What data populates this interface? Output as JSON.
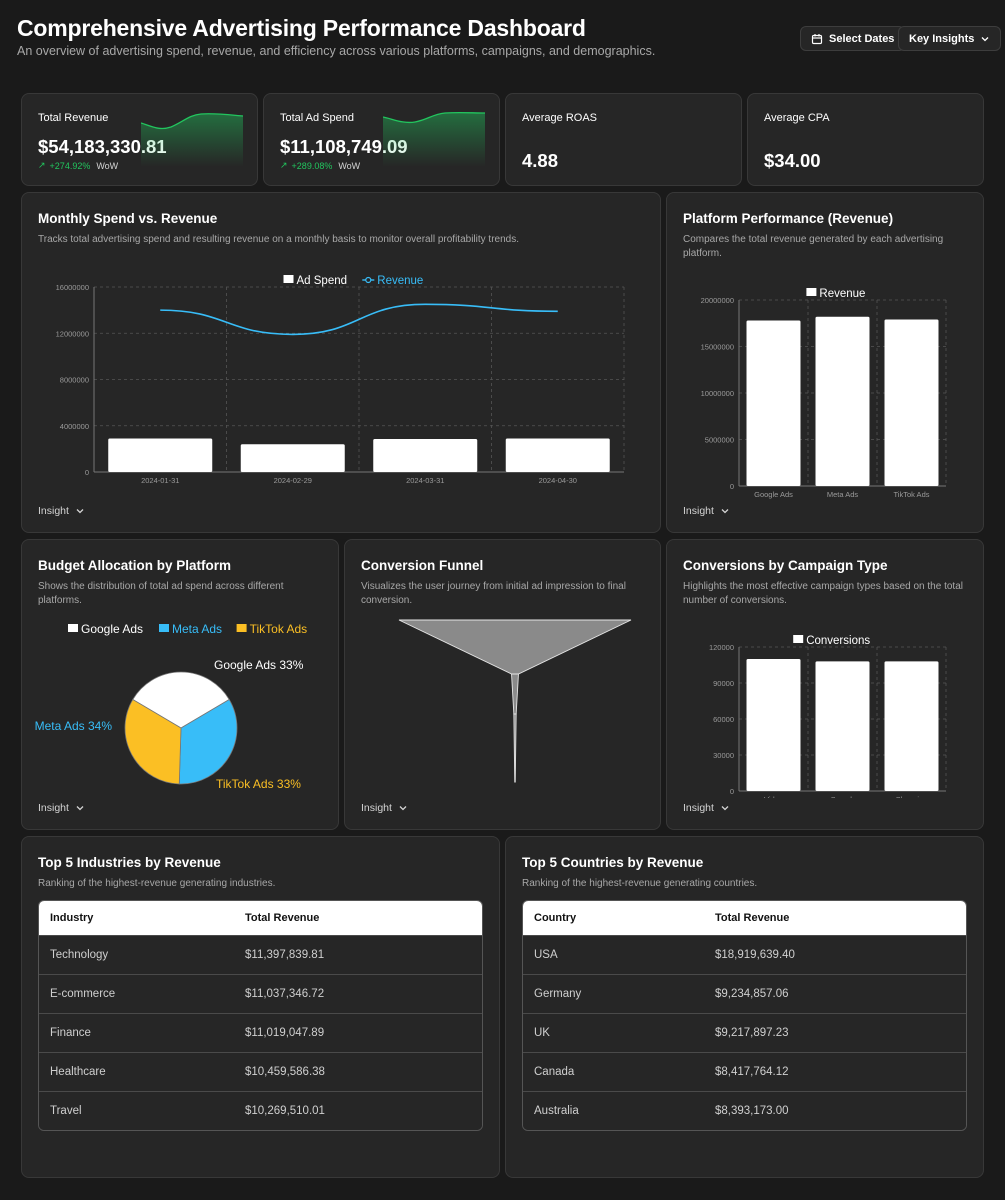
{
  "header": {
    "title": "Comprehensive Advertising Performance Dashboard",
    "subtitle": "An overview of advertising spend, revenue, and efficiency across various platforms, campaigns, and demographics.",
    "select_dates_label": "Select Dates",
    "key_insights_label": "Key Insights"
  },
  "kpis": [
    {
      "label": "Total Revenue",
      "value": "$54,183,330.81",
      "delta": "+274.92%",
      "period": "WoW"
    },
    {
      "label": "Total Ad Spend",
      "value": "$11,108,749.09",
      "delta": "+289.08%",
      "period": "WoW"
    },
    {
      "label": "Average ROAS",
      "value": "4.88"
    },
    {
      "label": "Average CPA",
      "value": "$34.00"
    }
  ],
  "insight_label": "Insight",
  "colors": {
    "revenue_line": "#38bdf8",
    "google": "#ffffff",
    "meta": "#38bdf8",
    "tiktok": "#fbbf24",
    "positive": "#22c55e"
  },
  "charts": {
    "monthly": {
      "title": "Monthly Spend vs. Revenue",
      "description": "Tracks total advertising spend and resulting revenue on a monthly basis to monitor overall profitability trends."
    },
    "platform": {
      "title": "Platform Performance (Revenue)",
      "description": "Compares the total revenue generated by each advertising platform."
    },
    "budget": {
      "title": "Budget Allocation by Platform",
      "description": "Shows the distribution of total ad spend across different platforms."
    },
    "funnel": {
      "title": "Conversion Funnel",
      "description": "Visualizes the user journey from initial ad impression to final conversion."
    },
    "campaign": {
      "title": "Conversions by Campaign Type",
      "description": "Highlights the most effective campaign types based on the total number of conversions."
    }
  },
  "chart_data": [
    {
      "type": "bar",
      "categories": [
        "2024-01-31",
        "2024-02-29",
        "2024-03-31",
        "2024-04-30"
      ],
      "series": [
        {
          "name": "Ad Spend",
          "type": "bar",
          "values": [
            2900000,
            2400000,
            2850000,
            2900000
          ]
        },
        {
          "name": "Revenue",
          "type": "line",
          "values": [
            14000000,
            11900000,
            14500000,
            13900000
          ]
        }
      ],
      "ylim": [
        0,
        16000000
      ],
      "yticks": [
        "0",
        "4000000",
        "8000000",
        "12000000",
        "16000000"
      ],
      "legend": "top",
      "grid": true
    },
    {
      "type": "bar",
      "categories": [
        "Google Ads",
        "Meta Ads",
        "TikTok Ads"
      ],
      "series": [
        {
          "name": "Revenue",
          "values": [
            17800000,
            18200000,
            17900000
          ]
        }
      ],
      "ylim": [
        0,
        20000000
      ],
      "yticks": [
        "0",
        "5000000",
        "10000000",
        "15000000",
        "20000000"
      ],
      "legend": "top",
      "grid": true
    },
    {
      "type": "pie",
      "categories": [
        "Google Ads",
        "Meta Ads",
        "TikTok Ads"
      ],
      "values": [
        33,
        34,
        33
      ],
      "labels": [
        "Google Ads 33%",
        "Meta Ads 34%",
        "TikTok Ads 33%"
      ],
      "legend": "top"
    },
    {
      "type": "funnel",
      "stages": [
        100,
        3,
        1
      ]
    },
    {
      "type": "bar",
      "categories": [
        "Video",
        "Search",
        "Shopping"
      ],
      "series": [
        {
          "name": "Conversions",
          "values": [
            110000,
            108000,
            108000
          ]
        }
      ],
      "ylim": [
        0,
        120000
      ],
      "yticks": [
        "0",
        "30000",
        "60000",
        "90000",
        "120000"
      ],
      "legend": "top",
      "grid": true
    }
  ],
  "tables": {
    "industries": {
      "title": "Top 5 Industries by Revenue",
      "description": "Ranking of the highest-revenue generating industries.",
      "headers": [
        "Industry",
        "Total Revenue"
      ],
      "rows": [
        [
          "Technology",
          "$11,397,839.81"
        ],
        [
          "E-commerce",
          "$11,037,346.72"
        ],
        [
          "Finance",
          "$11,019,047.89"
        ],
        [
          "Healthcare",
          "$10,459,586.38"
        ],
        [
          "Travel",
          "$10,269,510.01"
        ]
      ]
    },
    "countries": {
      "title": "Top 5 Countries by Revenue",
      "description": "Ranking of the highest-revenue generating countries.",
      "headers": [
        "Country",
        "Total Revenue"
      ],
      "rows": [
        [
          "USA",
          "$18,919,639.40"
        ],
        [
          "Germany",
          "$9,234,857.06"
        ],
        [
          "UK",
          "$9,217,897.23"
        ],
        [
          "Canada",
          "$8,417,764.12"
        ],
        [
          "Australia",
          "$8,393,173.00"
        ]
      ]
    }
  }
}
